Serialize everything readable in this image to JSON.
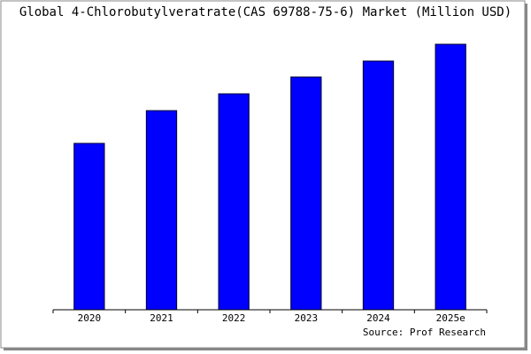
{
  "chart_data": {
    "type": "bar",
    "title": "Global 4-Chlorobutylveratrate(CAS 69788-75-6) Market (Million USD)",
    "categories": [
      "2020",
      "2021",
      "2022",
      "2023",
      "2024",
      "2025e"
    ],
    "values": [
      188,
      225,
      244,
      263,
      281,
      300
    ],
    "color": "#0000ff",
    "ylim": [
      0,
      310
    ],
    "source": "Source: Prof Research"
  }
}
